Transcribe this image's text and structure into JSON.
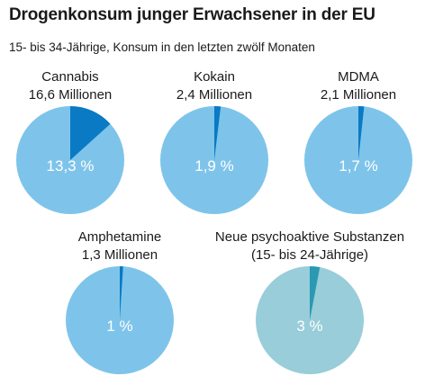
{
  "header": {
    "title": "Drogenkonsum junger Erwachsener in der EU",
    "subtitle": "15- bis 34-Jährige, Konsum in den letzten zwölf Monaten"
  },
  "colors": {
    "pie_base": "#7ec4ea",
    "pie_slice": "#0a7ac4",
    "pie_base_nps": "#98cdd9",
    "pie_slice_nps": "#2a99b3"
  },
  "chart_data": [
    {
      "type": "pie",
      "name": "Cannabis",
      "count_label": "16,6 Millionen",
      "value": 13.3,
      "value_label": "13,3 %",
      "color_set": "blue"
    },
    {
      "type": "pie",
      "name": "Kokain",
      "count_label": "2,4 Millionen",
      "value": 1.9,
      "value_label": "1,9 %",
      "color_set": "blue"
    },
    {
      "type": "pie",
      "name": "MDMA",
      "count_label": "2,1 Millionen",
      "value": 1.7,
      "value_label": "1,7 %",
      "color_set": "blue"
    },
    {
      "type": "pie",
      "name": "Amphetamine",
      "count_label": "1,3 Millionen",
      "value": 1,
      "value_label": "1 %",
      "color_set": "blue"
    },
    {
      "type": "pie",
      "name": "Neue psychoaktive Substanzen",
      "count_label": "(15- bis 24-Jährige)",
      "value": 3,
      "value_label": "3 %",
      "color_set": "teal"
    }
  ]
}
